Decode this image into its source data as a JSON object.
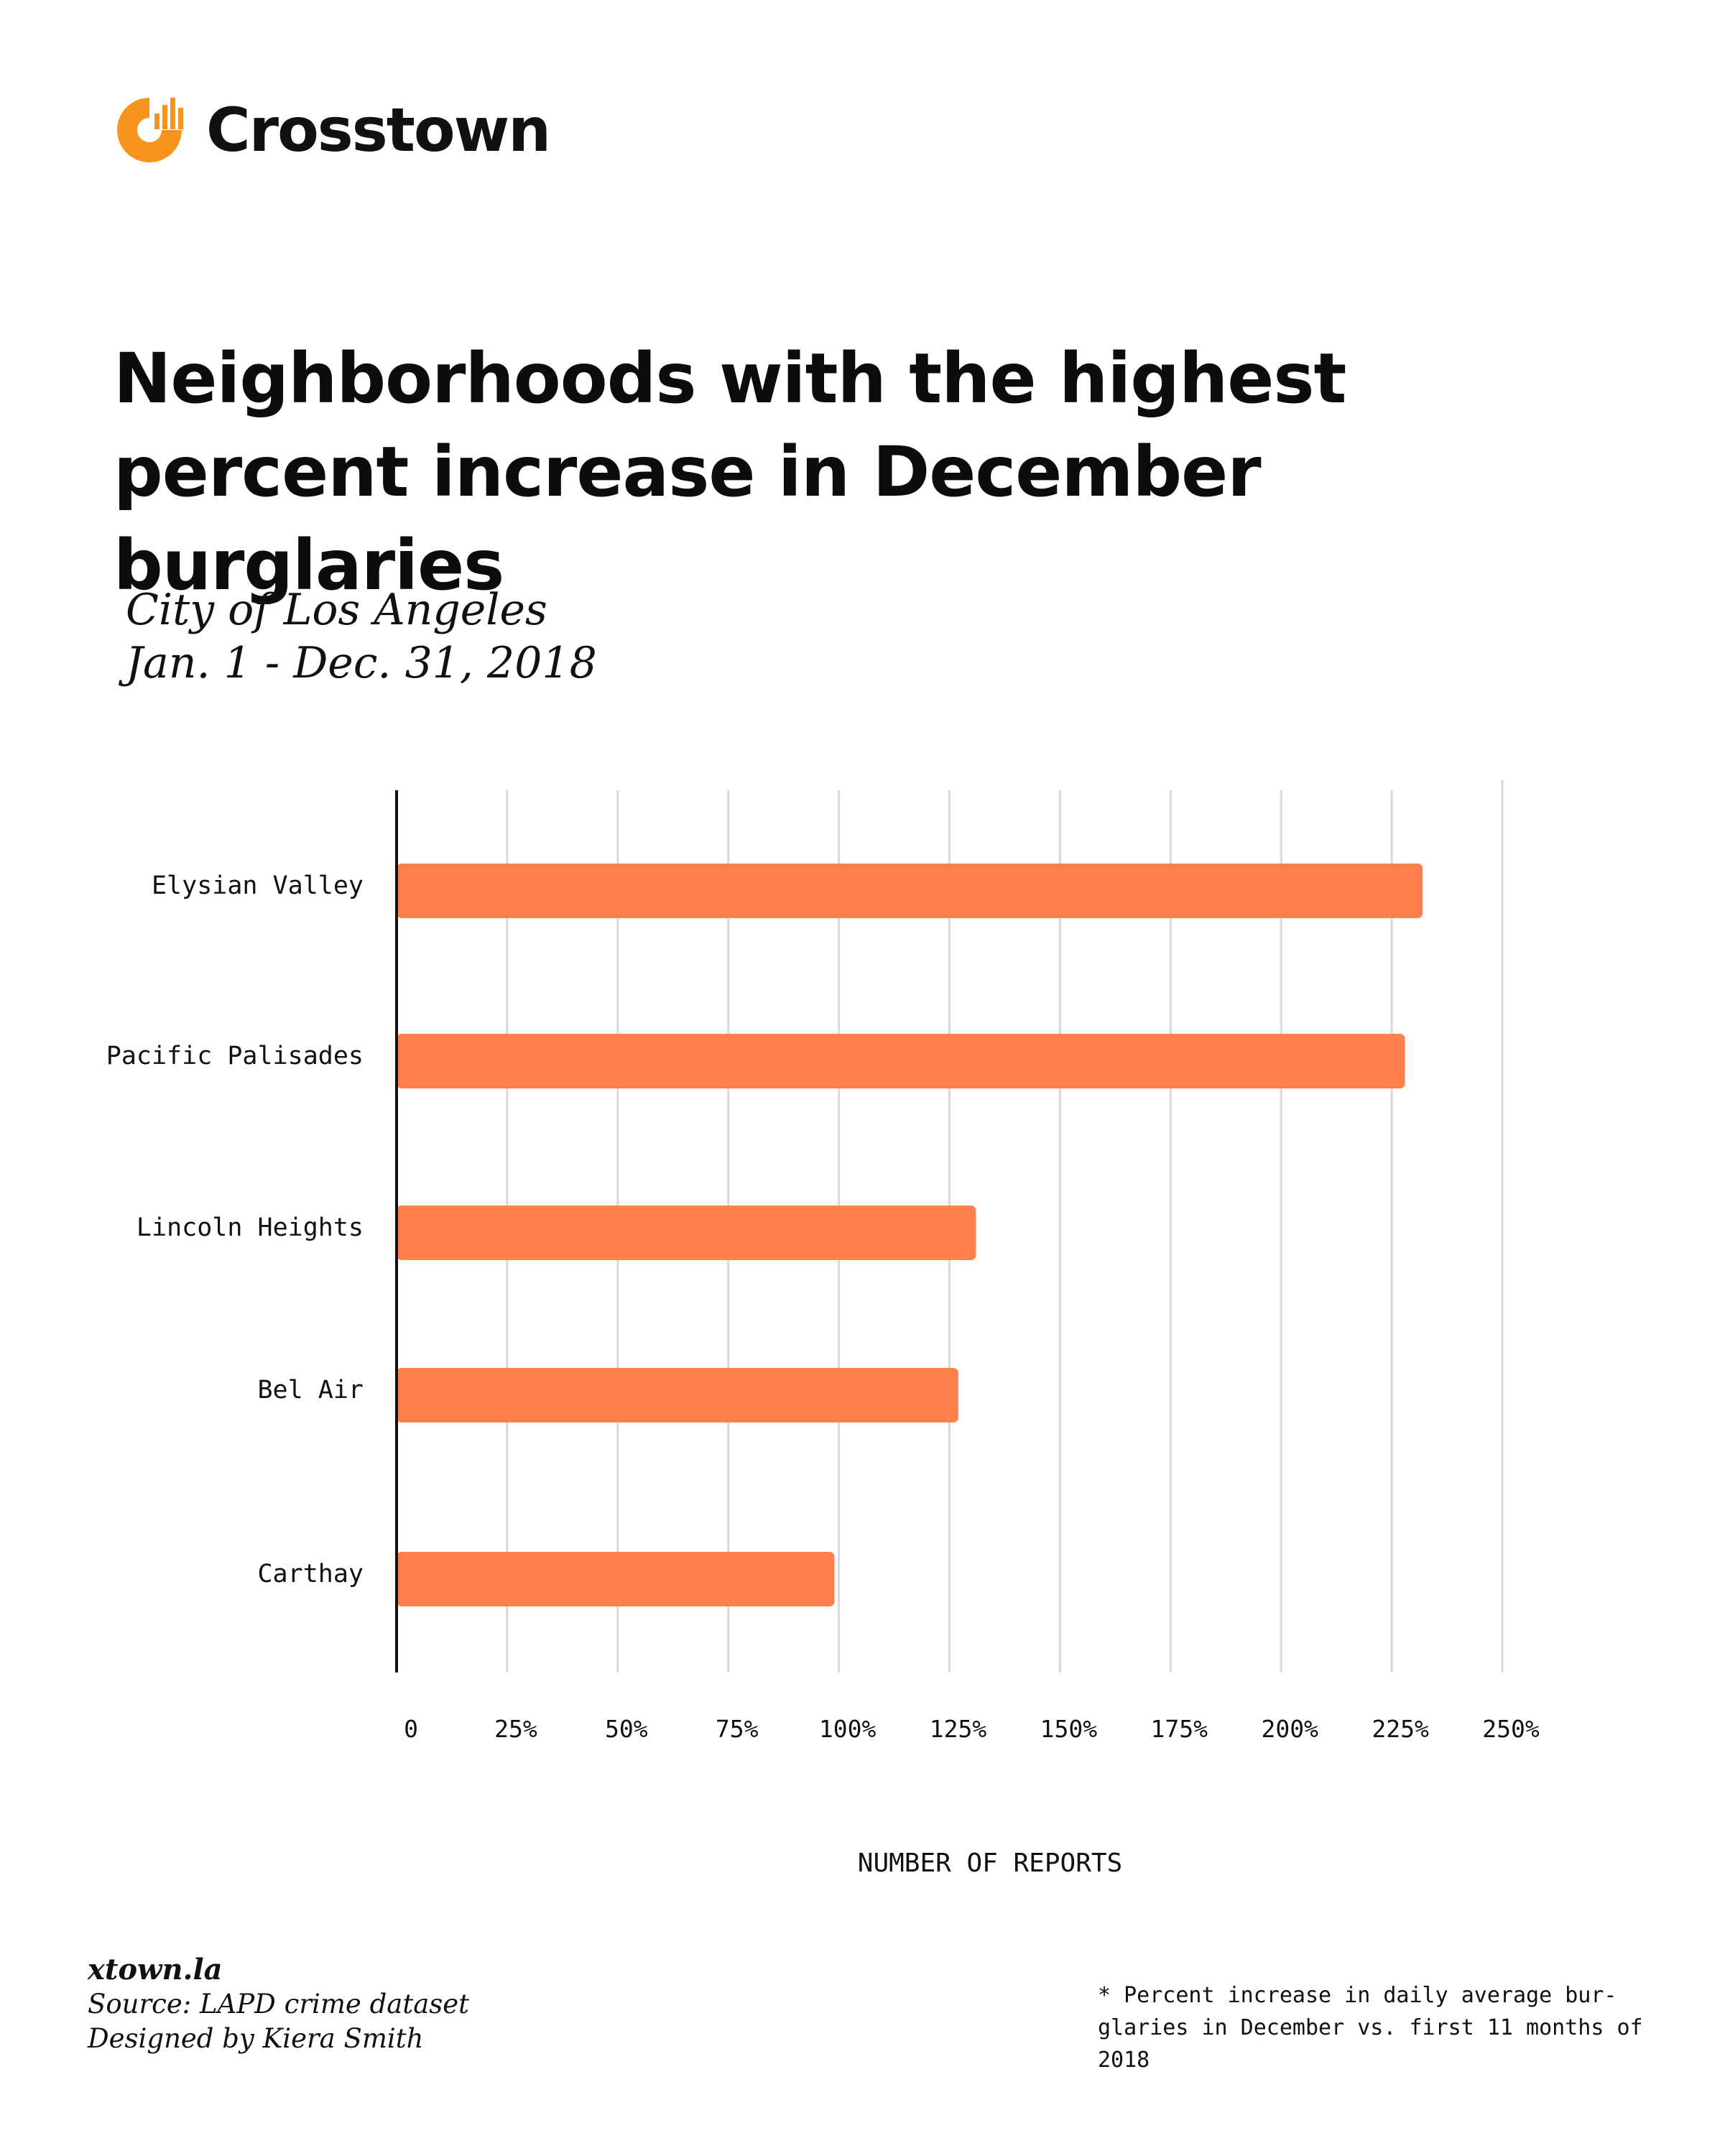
{
  "brand": {
    "name": "Crosstown",
    "accent": "#f7941d"
  },
  "title_lines": [
    "Neighborhoods with the highest",
    "percent increase in December burglaries"
  ],
  "subtitle_lines": [
    "City of Los Angeles",
    "Jan. 1 - Dec. 31, 2018"
  ],
  "chart_data": {
    "type": "bar",
    "orientation": "horizontal",
    "categories": [
      "Elysian Valley",
      "Pacific Palisades",
      "Lincoln Heights",
      "Bel Air",
      "Carthay"
    ],
    "values": [
      232,
      228,
      131,
      127,
      99
    ],
    "xlabel": "NUMBER OF REPORTS",
    "xlim": [
      0,
      250
    ],
    "tick_values": [
      0,
      25,
      50,
      75,
      100,
      125,
      150,
      175,
      200,
      225,
      250
    ],
    "tick_labels": [
      "0",
      "25%",
      "50%",
      "75%",
      "100%",
      "125%",
      "150%",
      "175%",
      "200%",
      "225%",
      "250%"
    ],
    "grid": "vertical",
    "bar_color": "#ff7f4d",
    "grid_color": "#d9d9d9",
    "axis_color": "#111111"
  },
  "footer": {
    "site": "xtown.la",
    "source": "Source: LAPD crime dataset",
    "designer": "Designed by Kiera Smith"
  },
  "note_lines": [
    "* Percent increase in daily average bur-",
    "glaries in December vs. first 11 months of",
    "2018"
  ]
}
